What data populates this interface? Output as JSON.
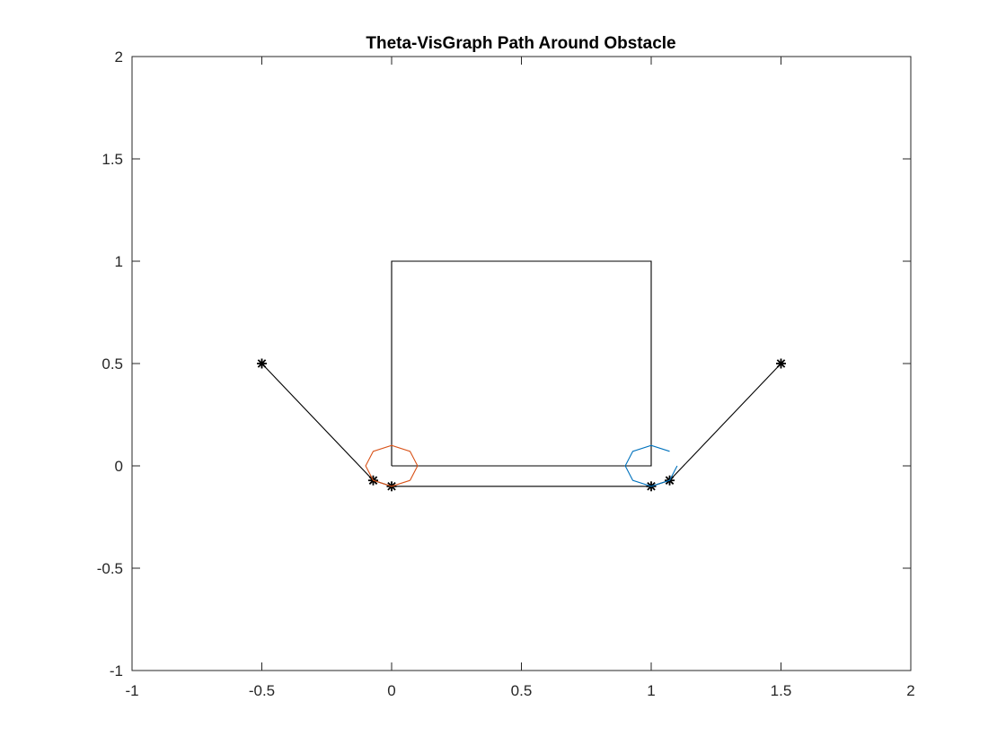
{
  "chart_data": {
    "type": "line",
    "title": "Theta-VisGraph Path Around Obstacle",
    "xlabel": "",
    "ylabel": "",
    "xlim": [
      -1,
      2
    ],
    "ylim": [
      -1,
      2
    ],
    "xticks": [
      -1,
      -0.5,
      0,
      0.5,
      1,
      1.5,
      2
    ],
    "yticks": [
      -1,
      -0.5,
      0,
      0.5,
      1,
      1.5,
      2
    ],
    "xtick_labels": [
      "-1",
      "-0.5",
      "0",
      "0.5",
      "1",
      "1.5",
      "2"
    ],
    "ytick_labels": [
      "-1",
      "-0.5",
      "0",
      "0.5",
      "1",
      "1.5",
      "2"
    ],
    "grid": false,
    "box": true,
    "series": [
      {
        "id": "obstacle",
        "color": "#000000",
        "marker": "none",
        "x": [
          0,
          1,
          1,
          0,
          0
        ],
        "y": [
          0,
          0,
          1,
          1,
          0
        ]
      },
      {
        "id": "path",
        "color": "#000000",
        "marker": "none",
        "x": [
          -0.5,
          -0.071,
          0,
          1,
          1.071,
          1.5
        ],
        "y": [
          0.5,
          -0.071,
          -0.1,
          -0.1,
          -0.071,
          0.5
        ]
      },
      {
        "id": "waypoints",
        "color": "#000000",
        "marker": "asterisk",
        "x": [
          -0.5,
          -0.071,
          0,
          1,
          1.071,
          1.5
        ],
        "y": [
          0.5,
          -0.071,
          -0.1,
          -0.1,
          -0.071,
          0.5
        ]
      },
      {
        "id": "arc-left",
        "color": "#D95319",
        "marker": "none",
        "x": [
          0.071,
          0.1,
          0.071,
          0,
          -0.071,
          -0.1,
          -0.071,
          0,
          0.071
        ],
        "y": [
          -0.071,
          0,
          0.071,
          0.1,
          0.071,
          0,
          -0.071,
          -0.1,
          -0.071
        ]
      },
      {
        "id": "arc-right",
        "color": "#0072BD",
        "marker": "none",
        "x": [
          1.071,
          1.0,
          0.929,
          0.9,
          0.929,
          1.0,
          1.071,
          1.1
        ],
        "y": [
          0.071,
          0.1,
          0.071,
          0,
          -0.071,
          -0.1,
          -0.071,
          0
        ]
      }
    ]
  }
}
